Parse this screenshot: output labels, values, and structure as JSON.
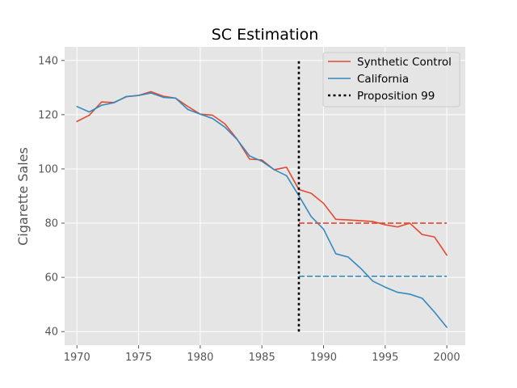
{
  "chart_data": {
    "type": "line",
    "title": "SC Estimation",
    "xlabel": "",
    "ylabel": "Cigarette Sales",
    "xlim": [
      1969,
      2001.5
    ],
    "ylim": [
      35,
      145
    ],
    "xticks": [
      1970,
      1975,
      1980,
      1985,
      1990,
      1995,
      2000
    ],
    "yticks": [
      40,
      60,
      80,
      100,
      120,
      140
    ],
    "grid": true,
    "legend_position": "top-right",
    "x": [
      1970,
      1971,
      1972,
      1973,
      1974,
      1975,
      1976,
      1977,
      1978,
      1979,
      1980,
      1981,
      1982,
      1983,
      1984,
      1985,
      1986,
      1987,
      1988,
      1989,
      1990,
      1991,
      1992,
      1993,
      1994,
      1995,
      1996,
      1997,
      1998,
      1999,
      2000
    ],
    "series": [
      {
        "name": "Synthetic Control",
        "color": "#E24A33",
        "values": [
          117.5,
          119.8,
          124.7,
          124.5,
          126.6,
          127.1,
          128.5,
          126.8,
          126.1,
          123.0,
          120.2,
          119.8,
          116.6,
          110.9,
          103.6,
          103.3,
          99.7,
          100.6,
          92.4,
          91.0,
          87.3,
          81.4,
          81.2,
          80.9,
          80.6,
          79.4,
          78.6,
          80.0,
          75.8,
          74.9,
          68.2
        ]
      },
      {
        "name": "California",
        "color": "#348ABD",
        "values": [
          123.0,
          121.0,
          123.5,
          124.4,
          126.7,
          127.1,
          128.0,
          126.4,
          126.1,
          121.9,
          120.2,
          118.6,
          115.4,
          110.8,
          104.8,
          102.8,
          99.7,
          97.5,
          90.1,
          82.4,
          77.8,
          68.7,
          67.5,
          63.4,
          58.6,
          56.4,
          54.5,
          53.8,
          52.3,
          47.2,
          41.6
        ]
      }
    ],
    "reference_lines": [
      {
        "orientation": "vertical",
        "name": "Proposition 99",
        "x": 1988,
        "y_from": 40,
        "y_to": 140,
        "color": "#000000",
        "style": "dotted"
      },
      {
        "orientation": "horizontal",
        "y": 80.0,
        "x_from": 1988,
        "x_to": 2000,
        "color": "#E24A33",
        "style": "dashed"
      },
      {
        "orientation": "horizontal",
        "y": 60.4,
        "x_from": 1988,
        "x_to": 2000,
        "color": "#348ABD",
        "style": "dashed"
      }
    ],
    "legend": [
      {
        "label": "Synthetic Control",
        "color": "#E24A33",
        "style": "solid"
      },
      {
        "label": "California",
        "color": "#348ABD",
        "style": "solid"
      },
      {
        "label": "Proposition 99",
        "color": "#000000",
        "style": "dotted"
      }
    ]
  }
}
